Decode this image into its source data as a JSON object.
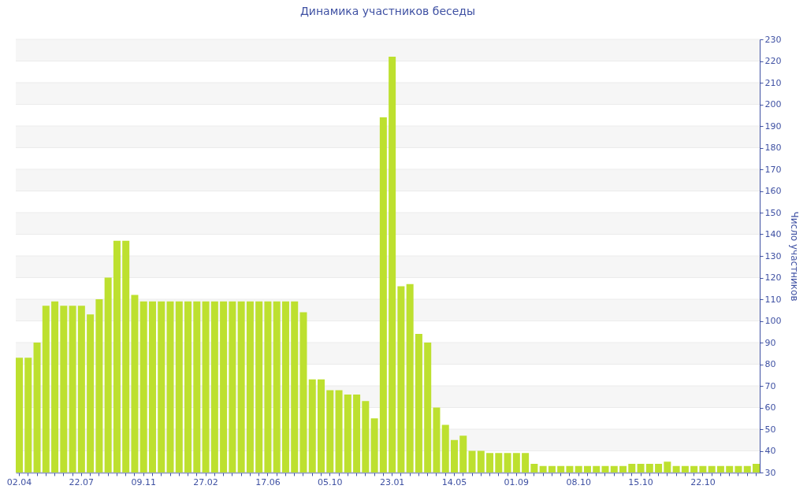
{
  "chart_data": {
    "type": "bar",
    "title": "Динамика участников беседы",
    "ylabel": "Число участников",
    "categories": [
      "02.04",
      null,
      null,
      null,
      null,
      null,
      null,
      "22.07",
      null,
      null,
      null,
      null,
      null,
      null,
      "09.11",
      null,
      null,
      null,
      null,
      null,
      null,
      "27.02",
      null,
      null,
      null,
      null,
      null,
      null,
      "17.06",
      null,
      null,
      null,
      null,
      null,
      null,
      "05.10",
      null,
      null,
      null,
      null,
      null,
      null,
      "23.01",
      null,
      null,
      null,
      null,
      null,
      null,
      "14.05",
      null,
      null,
      null,
      null,
      null,
      null,
      "01.09",
      null,
      null,
      null,
      null,
      null,
      null,
      "08.10",
      null,
      null,
      null,
      null,
      null,
      null,
      "15.10",
      null,
      null,
      null,
      null,
      null,
      null,
      "22.10",
      null,
      null,
      null,
      null,
      null,
      null
    ],
    "values": [
      83,
      83,
      90,
      107,
      109,
      107,
      107,
      107,
      103,
      110,
      120,
      137,
      137,
      112,
      109,
      109,
      109,
      109,
      109,
      109,
      109,
      109,
      109,
      109,
      109,
      109,
      109,
      109,
      109,
      109,
      109,
      109,
      104,
      73,
      73,
      68,
      68,
      66,
      66,
      63,
      55,
      194,
      222,
      116,
      117,
      94,
      90,
      60,
      52,
      45,
      47,
      40,
      40,
      39,
      39,
      39,
      39,
      39,
      34,
      33,
      33,
      33,
      33,
      33,
      33,
      33,
      33,
      33,
      33,
      34,
      34,
      34,
      34,
      35,
      33,
      33,
      33,
      33,
      33,
      33,
      33,
      33,
      33,
      34
    ],
    "color": "#bde02f",
    "ylim": [
      30,
      230
    ],
    "yticks": [
      30,
      40,
      50,
      60,
      70,
      80,
      90,
      100,
      110,
      120,
      130,
      140,
      150,
      160,
      170,
      180,
      190,
      200,
      210,
      220,
      230
    ],
    "grid": "y"
  }
}
